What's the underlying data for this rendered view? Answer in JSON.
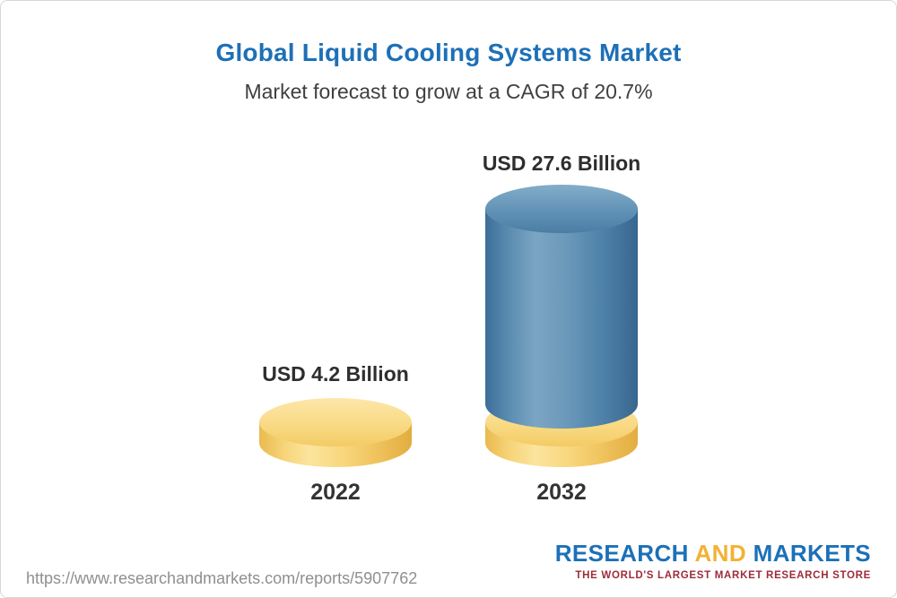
{
  "header": {
    "title": "Global Liquid Cooling Systems Market",
    "subtitle": "Market forecast to grow at a CAGR of 20.7%"
  },
  "chart_data": {
    "type": "bar",
    "title": "Global Liquid Cooling Systems Market",
    "subtitle": "Market forecast to grow at a CAGR of 20.7%",
    "unit": "USD Billion",
    "categories": [
      "2022",
      "2032"
    ],
    "values": [
      4.2,
      27.6
    ],
    "value_labels": [
      "USD 4.2 Billion",
      "USD 27.6 Billion"
    ],
    "cagr_percent": 20.7,
    "bar_colors": [
      "#F6CE6C",
      "#4E86AD"
    ],
    "bar_style": "3d-cylinder",
    "grid": false,
    "legend": "none",
    "axes": "none"
  },
  "footer": {
    "source_url": "https://www.researchandmarkets.com/reports/5907762",
    "logo": {
      "word1": "RESEARCH",
      "word2": "AND",
      "word3": "MARKETS",
      "tagline": "THE WORLD'S LARGEST MARKET RESEARCH STORE",
      "color_primary": "#1C70B8",
      "color_accent": "#F2B233",
      "color_tagline": "#9E2B3A"
    }
  }
}
